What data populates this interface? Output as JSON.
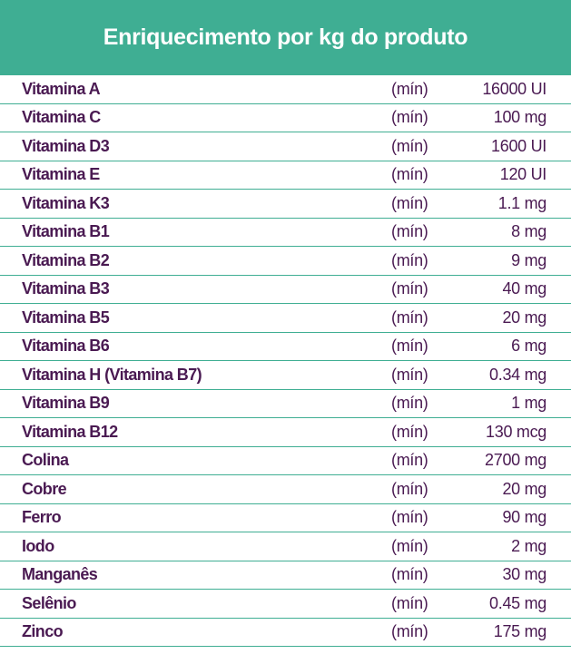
{
  "header": {
    "title": "Enriquecimento por kg do produto"
  },
  "colors": {
    "header_bg": "#3fae93",
    "header_text": "#ffffff",
    "row_text": "#4a1a52",
    "row_rule": "#3fae93"
  },
  "rows": [
    {
      "name": "Vitamina A",
      "qualifier": "(mín)",
      "amount": "16000 UI"
    },
    {
      "name": "Vitamina C",
      "qualifier": "(mín)",
      "amount": "100 mg"
    },
    {
      "name": "Vitamina D3",
      "qualifier": "(mín)",
      "amount": "1600 UI"
    },
    {
      "name": "Vitamina E",
      "qualifier": "(mín)",
      "amount": "120 UI"
    },
    {
      "name": "Vitamina K3",
      "qualifier": "(mín)",
      "amount": "1.1 mg"
    },
    {
      "name": "Vitamina B1",
      "qualifier": "(mín)",
      "amount": "8 mg"
    },
    {
      "name": "Vitamina B2",
      "qualifier": "(mín)",
      "amount": "9 mg"
    },
    {
      "name": "Vitamina B3",
      "qualifier": "(mín)",
      "amount": "40 mg"
    },
    {
      "name": "Vitamina B5",
      "qualifier": "(mín)",
      "amount": "20 mg"
    },
    {
      "name": "Vitamina B6",
      "qualifier": "(mín)",
      "amount": "6 mg"
    },
    {
      "name": "Vitamina H (Vitamina B7)",
      "qualifier": "(mín)",
      "amount": "0.34 mg"
    },
    {
      "name": "Vitamina B9",
      "qualifier": "(mín)",
      "amount": "1 mg"
    },
    {
      "name": "Vitamina B12",
      "qualifier": "(mín)",
      "amount": "130 mcg"
    },
    {
      "name": "Colina",
      "qualifier": "(mín)",
      "amount": "2700 mg"
    },
    {
      "name": "Cobre",
      "qualifier": "(mín)",
      "amount": "20 mg"
    },
    {
      "name": "Ferro",
      "qualifier": "(mín)",
      "amount": "90 mg"
    },
    {
      "name": "Iodo",
      "qualifier": "(mín)",
      "amount": "2 mg"
    },
    {
      "name": "Manganês",
      "qualifier": "(mín)",
      "amount": "30 mg"
    },
    {
      "name": "Selênio",
      "qualifier": "(mín)",
      "amount": "0.45 mg"
    },
    {
      "name": "Zinco",
      "qualifier": "(mín)",
      "amount": "175 mg"
    }
  ]
}
